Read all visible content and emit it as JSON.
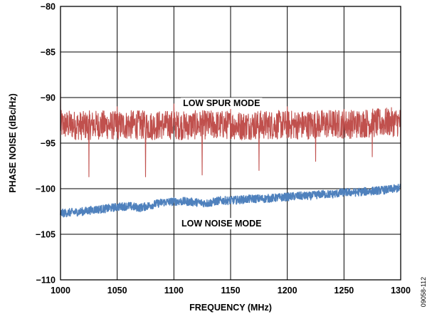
{
  "chart_data": {
    "type": "line",
    "xlabel": "FREQUENCY (MHz)",
    "ylabel": "PHASE NOISE (dBc/Hz)",
    "xlim": [
      1000,
      1300
    ],
    "ylim": [
      -110,
      -80
    ],
    "x_ticks": [
      1000,
      1050,
      1100,
      1150,
      1200,
      1250,
      1300
    ],
    "y_ticks": [
      -80,
      -85,
      -90,
      -95,
      -100,
      -105,
      -110
    ],
    "grid": true,
    "series": [
      {
        "name": "LOW SPUR MODE",
        "color": "#c0504d",
        "x": [
          1000,
          1010,
          1020,
          1030,
          1040,
          1050,
          1060,
          1070,
          1080,
          1090,
          1100,
          1110,
          1120,
          1130,
          1140,
          1150,
          1160,
          1170,
          1180,
          1190,
          1200,
          1210,
          1220,
          1230,
          1240,
          1250,
          1260,
          1270,
          1280,
          1290,
          1300
        ],
        "y": [
          -93.0,
          -93.0,
          -93.1,
          -93.0,
          -93.0,
          -93.1,
          -93.0,
          -93.0,
          -93.1,
          -93.0,
          -93.0,
          -93.1,
          -93.0,
          -93.0,
          -93.0,
          -93.0,
          -93.1,
          -93.0,
          -93.0,
          -93.0,
          -93.0,
          -93.0,
          -93.0,
          -92.9,
          -92.9,
          -92.9,
          -92.9,
          -92.8,
          -92.8,
          -92.7,
          -92.7
        ],
        "noise_band": 1.6,
        "spurs": [
          {
            "x": 1000,
            "y": -98.5
          },
          {
            "x": 1025,
            "y": -98.7
          },
          {
            "x": 1050,
            "y": -96.0
          },
          {
            "x": 1075,
            "y": -98.7
          },
          {
            "x": 1100,
            "y": -97.0
          },
          {
            "x": 1125,
            "y": -98.5
          },
          {
            "x": 1150,
            "y": -96.0
          },
          {
            "x": 1175,
            "y": -98.0
          },
          {
            "x": 1200,
            "y": -95.8
          },
          {
            "x": 1225,
            "y": -97.0
          },
          {
            "x": 1250,
            "y": -96.0
          },
          {
            "x": 1275,
            "y": -96.5
          },
          {
            "x": 1300,
            "y": -95.5
          }
        ],
        "peaks": [
          {
            "x": 1000,
            "y": -89.5
          },
          {
            "x": 1050,
            "y": -91.0
          },
          {
            "x": 1100,
            "y": -90.7
          },
          {
            "x": 1150,
            "y": -91.0
          },
          {
            "x": 1200,
            "y": -91.0
          },
          {
            "x": 1250,
            "y": -91.3
          }
        ]
      },
      {
        "name": "LOW NOISE MODE",
        "color": "#4f81bd",
        "x": [
          1000,
          1010,
          1020,
          1030,
          1040,
          1050,
          1060,
          1070,
          1080,
          1090,
          1100,
          1110,
          1120,
          1130,
          1140,
          1150,
          1160,
          1170,
          1180,
          1190,
          1200,
          1210,
          1220,
          1230,
          1240,
          1250,
          1260,
          1270,
          1280,
          1290,
          1300
        ],
        "y": [
          -102.7,
          -102.6,
          -102.5,
          -102.3,
          -102.2,
          -102.0,
          -101.9,
          -102.1,
          -101.8,
          -101.5,
          -101.4,
          -101.4,
          -101.5,
          -101.6,
          -101.3,
          -101.3,
          -101.2,
          -101.1,
          -101.1,
          -101.0,
          -100.9,
          -100.8,
          -100.8,
          -100.6,
          -100.6,
          -100.4,
          -100.4,
          -100.3,
          -100.2,
          -100.1,
          -99.9
        ],
        "noise_band": 0.45
      }
    ],
    "annotations": [
      {
        "text": "LOW SPUR MODE",
        "x": 1142,
        "y": -90.6
      },
      {
        "text": "LOW NOISE MODE",
        "x": 1142,
        "y": -103.8
      }
    ]
  },
  "figure_id": "09058-112"
}
